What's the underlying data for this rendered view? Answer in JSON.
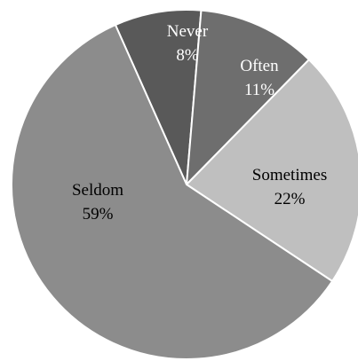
{
  "chart_data": {
    "type": "pie",
    "title": "",
    "slices": [
      {
        "category": "Never",
        "value": 8,
        "percent_label": "8%",
        "color": "#595959",
        "label_color": "#ffffff"
      },
      {
        "category": "Often",
        "value": 11,
        "percent_label": "11%",
        "color": "#6e6e6e",
        "label_color": "#ffffff"
      },
      {
        "category": "Sometimes",
        "value": 22,
        "percent_label": "22%",
        "color": "#bfbfbf",
        "label_color": "#000000"
      },
      {
        "category": "Seldom",
        "value": 59,
        "percent_label": "59%",
        "color": "#8c8c8c",
        "label_color": "#000000"
      }
    ],
    "start_angle_deg": -24,
    "direction": "clockwise",
    "slice_border_color": "#ffffff",
    "legend": "none"
  }
}
